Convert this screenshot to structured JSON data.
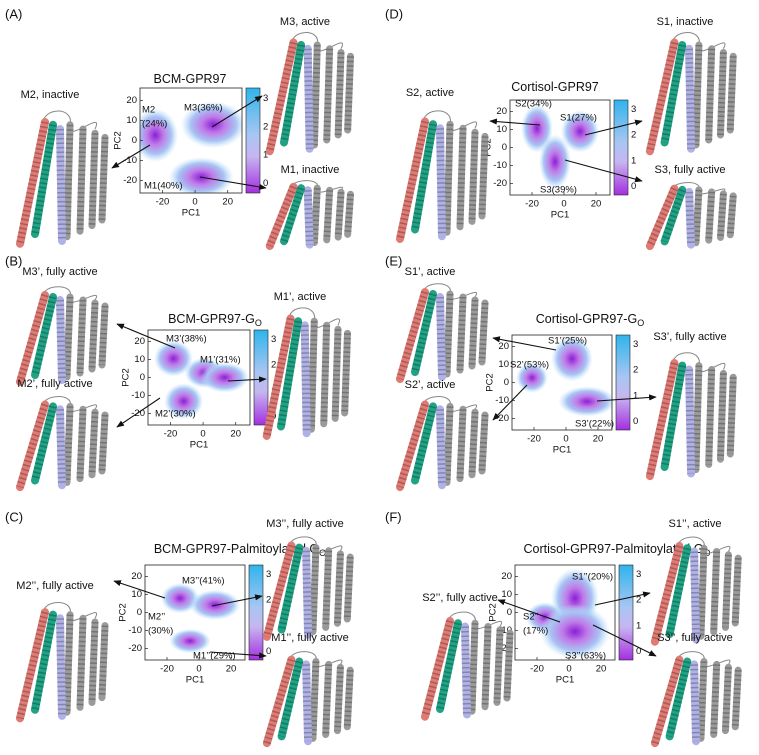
{
  "panels": [
    {
      "letter": "(A)",
      "title": "BCM-GPR97",
      "xlabel": "PC1",
      "ylabel": "PC2",
      "xticks": [
        -20,
        0,
        20
      ],
      "yticks": [
        20,
        10,
        0,
        -10,
        -20
      ],
      "colorbar_ticks": [
        3,
        2,
        1,
        0
      ],
      "states": [
        {
          "lines": [
            "M2",
            "(24%)"
          ]
        },
        {
          "lines": [
            "M3(36%)"
          ]
        },
        {
          "lines": [
            "M1(40%)"
          ]
        }
      ],
      "structures": [
        {
          "label": "M2, inactive"
        },
        {
          "label": "M3, active"
        },
        {
          "label": "M1, inactive"
        }
      ]
    },
    {
      "letter": "(B)",
      "title": "BCM-GPR97-G",
      "title_sub": "O",
      "xlabel": "PC1",
      "ylabel": "PC2",
      "xticks": [
        -20,
        0,
        20
      ],
      "yticks": [
        20,
        10,
        0,
        -10,
        -20
      ],
      "colorbar_ticks": [
        3,
        2,
        1,
        0
      ],
      "states": [
        {
          "lines": [
            "M3’(38%)"
          ]
        },
        {
          "lines": [
            "M1’(31%)"
          ]
        },
        {
          "lines": [
            "M2’(30%)"
          ]
        }
      ],
      "structures": [
        {
          "label": "M3’, fully active"
        },
        {
          "label": "M2’, fully active"
        },
        {
          "label": "M1’, active"
        }
      ]
    },
    {
      "letter": "(C)",
      "title": "BCM-GPR97-Palmitoylated G",
      "title_sub": "O",
      "xlabel": "PC1",
      "ylabel": "PC2",
      "xticks": [
        -20,
        0,
        20
      ],
      "yticks": [
        20,
        10,
        0,
        -10,
        -20
      ],
      "colorbar_ticks": [
        3,
        2,
        1,
        0
      ],
      "states": [
        {
          "lines": [
            "M3’’(41%)"
          ]
        },
        {
          "lines": [
            "M2’’",
            "(30%)"
          ]
        },
        {
          "lines": [
            "M1’’(29%)"
          ]
        }
      ],
      "structures": [
        {
          "label": "M2’’, fully active"
        },
        {
          "label": "M3’’, fully active"
        },
        {
          "label": "M1’’, fully active"
        }
      ]
    },
    {
      "letter": "(D)",
      "title": "Cortisol-GPR97",
      "xlabel": "PC1",
      "ylabel": "PC2",
      "xticks": [
        -20,
        0,
        20
      ],
      "yticks": [
        20,
        10,
        0,
        -10,
        -20
      ],
      "colorbar_ticks": [
        3,
        2,
        1,
        0
      ],
      "states": [
        {
          "lines": [
            "S2(34%)"
          ]
        },
        {
          "lines": [
            "S1(27%)"
          ]
        },
        {
          "lines": [
            "S3(39%)"
          ]
        }
      ],
      "structures": [
        {
          "label": "S2, active"
        },
        {
          "label": "S1, inactive"
        },
        {
          "label": "S3, fully active"
        }
      ]
    },
    {
      "letter": "(E)",
      "title": "Cortisol-GPR97-G",
      "title_sub": "O",
      "xlabel": "PC1",
      "ylabel": "PC2",
      "xticks": [
        -20,
        0,
        20
      ],
      "yticks": [
        20,
        10,
        0,
        -10,
        -20
      ],
      "colorbar_ticks": [
        3,
        2,
        1,
        0
      ],
      "states": [
        {
          "lines": [
            "S1’(25%)"
          ]
        },
        {
          "lines": [
            "S2’(53%)"
          ]
        },
        {
          "lines": [
            "S3’(22%)"
          ]
        }
      ],
      "structures": [
        {
          "label": "S1’, active"
        },
        {
          "label": "S2’, active"
        },
        {
          "label": "S3’, fully active"
        }
      ]
    },
    {
      "letter": "(F)",
      "title": "Cortisol-GPR97-Palmitoylated G",
      "title_sub": "O",
      "xlabel": "PC1",
      "ylabel": "PC2",
      "xticks": [
        -20,
        0,
        20
      ],
      "yticks": [
        20,
        10,
        0,
        -10,
        -20
      ],
      "colorbar_ticks": [
        3,
        2,
        1,
        0
      ],
      "states": [
        {
          "lines": [
            "S1’’(20%)"
          ]
        },
        {
          "lines": [
            "S2’’",
            "(17%)"
          ]
        },
        {
          "lines": [
            "S3’’(63%)"
          ]
        }
      ],
      "structures": [
        {
          "label": "S2’’, fully active"
        },
        {
          "label": "S1’’, active"
        },
        {
          "label": "S3’’, fully active"
        }
      ]
    }
  ]
}
